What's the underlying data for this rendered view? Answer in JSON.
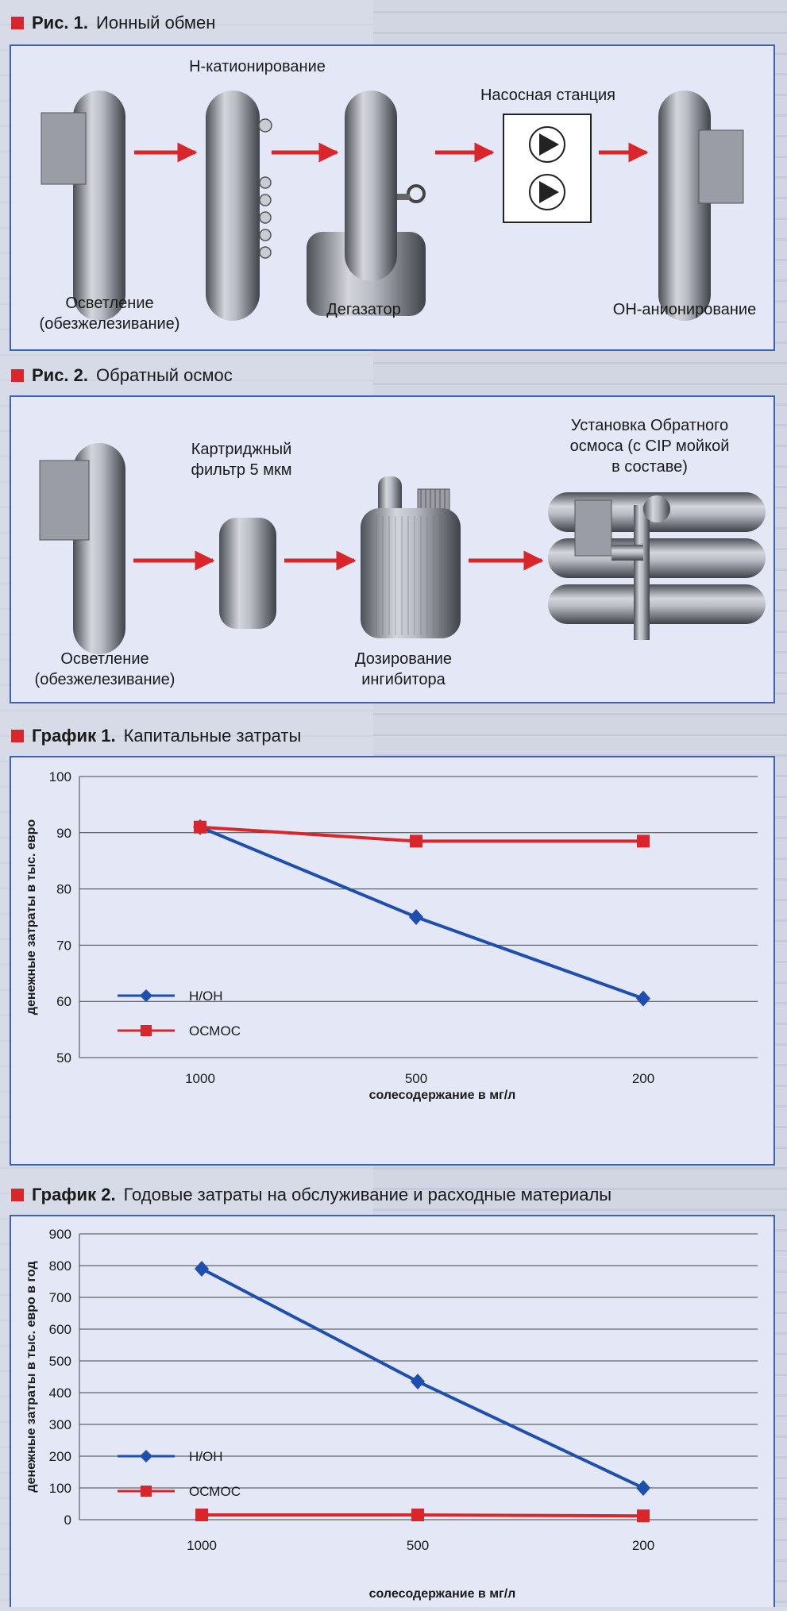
{
  "fig1": {
    "title_num": "Рис. 1.",
    "title_text": "Ионный обмен",
    "labels": {
      "h_cation": "Н-катионирование",
      "pump": "Насосная станция",
      "clarify_1": "Осветление",
      "clarify_2": "(обезжелезивание)",
      "degasser": "Дегазатор",
      "oh_anion": "ОН-анионирование"
    }
  },
  "fig2": {
    "title_num": "Рис. 2.",
    "title_text": "Обратный осмос",
    "labels": {
      "cartridge_1": "Картриджный",
      "cartridge_2": "фильтр 5 мкм",
      "ro_1": "Установка Обратного",
      "ro_2": "осмоса (с CIP мойкой",
      "ro_3": "в составе)",
      "clarify_1": "Осветление",
      "clarify_2": "(обезжелезивание)",
      "dosing_1": "Дозирование",
      "dosing_2": "ингибитора"
    }
  },
  "graph1": {
    "title_num": "График 1.",
    "title_text": "Капитальные затраты"
  },
  "graph2": {
    "title_num": "График 2.",
    "title_text": "Годовые затраты на обслуживание и расходные материалы"
  },
  "colors": {
    "red": "#d8262a",
    "blue": "#1f4fae",
    "panel_border": "#3a64ad",
    "panel_bg": "#e3e7f6"
  },
  "chart_data": [
    {
      "type": "line",
      "categories": [
        "1000",
        "500",
        "200"
      ],
      "series": [
        {
          "name": "Н/ОН",
          "values": [
            91,
            75,
            60.5
          ],
          "marker": "diamond",
          "color": "#1f4fae"
        },
        {
          "name": "ОСМОС",
          "values": [
            91,
            88.5,
            88.5
          ],
          "marker": "square",
          "color": "#d8262a"
        }
      ],
      "xlabel": "солесодержание в мг/л",
      "ylabel": "денежные затраты в тыс. евро",
      "ylim": [
        50,
        100
      ],
      "yticks": [
        50,
        60,
        70,
        80,
        90,
        100
      ],
      "grid": true,
      "legend": "left-bottom"
    },
    {
      "type": "line",
      "categories": [
        "1000",
        "500",
        "200"
      ],
      "series": [
        {
          "name": "Н/ОН",
          "values": [
            790,
            435,
            100
          ],
          "marker": "diamond",
          "color": "#1f4fae"
        },
        {
          "name": "ОСМОС",
          "values": [
            15,
            15,
            12
          ],
          "marker": "square",
          "color": "#d8262a"
        }
      ],
      "xlabel": "солесодержание в мг/л",
      "ylabel": "денежные затраты в тыс. евро в год",
      "ylim": [
        0,
        900
      ],
      "yticks": [
        0,
        100,
        200,
        300,
        400,
        500,
        600,
        700,
        800,
        900
      ],
      "grid": true,
      "legend": "left-bottom"
    }
  ]
}
